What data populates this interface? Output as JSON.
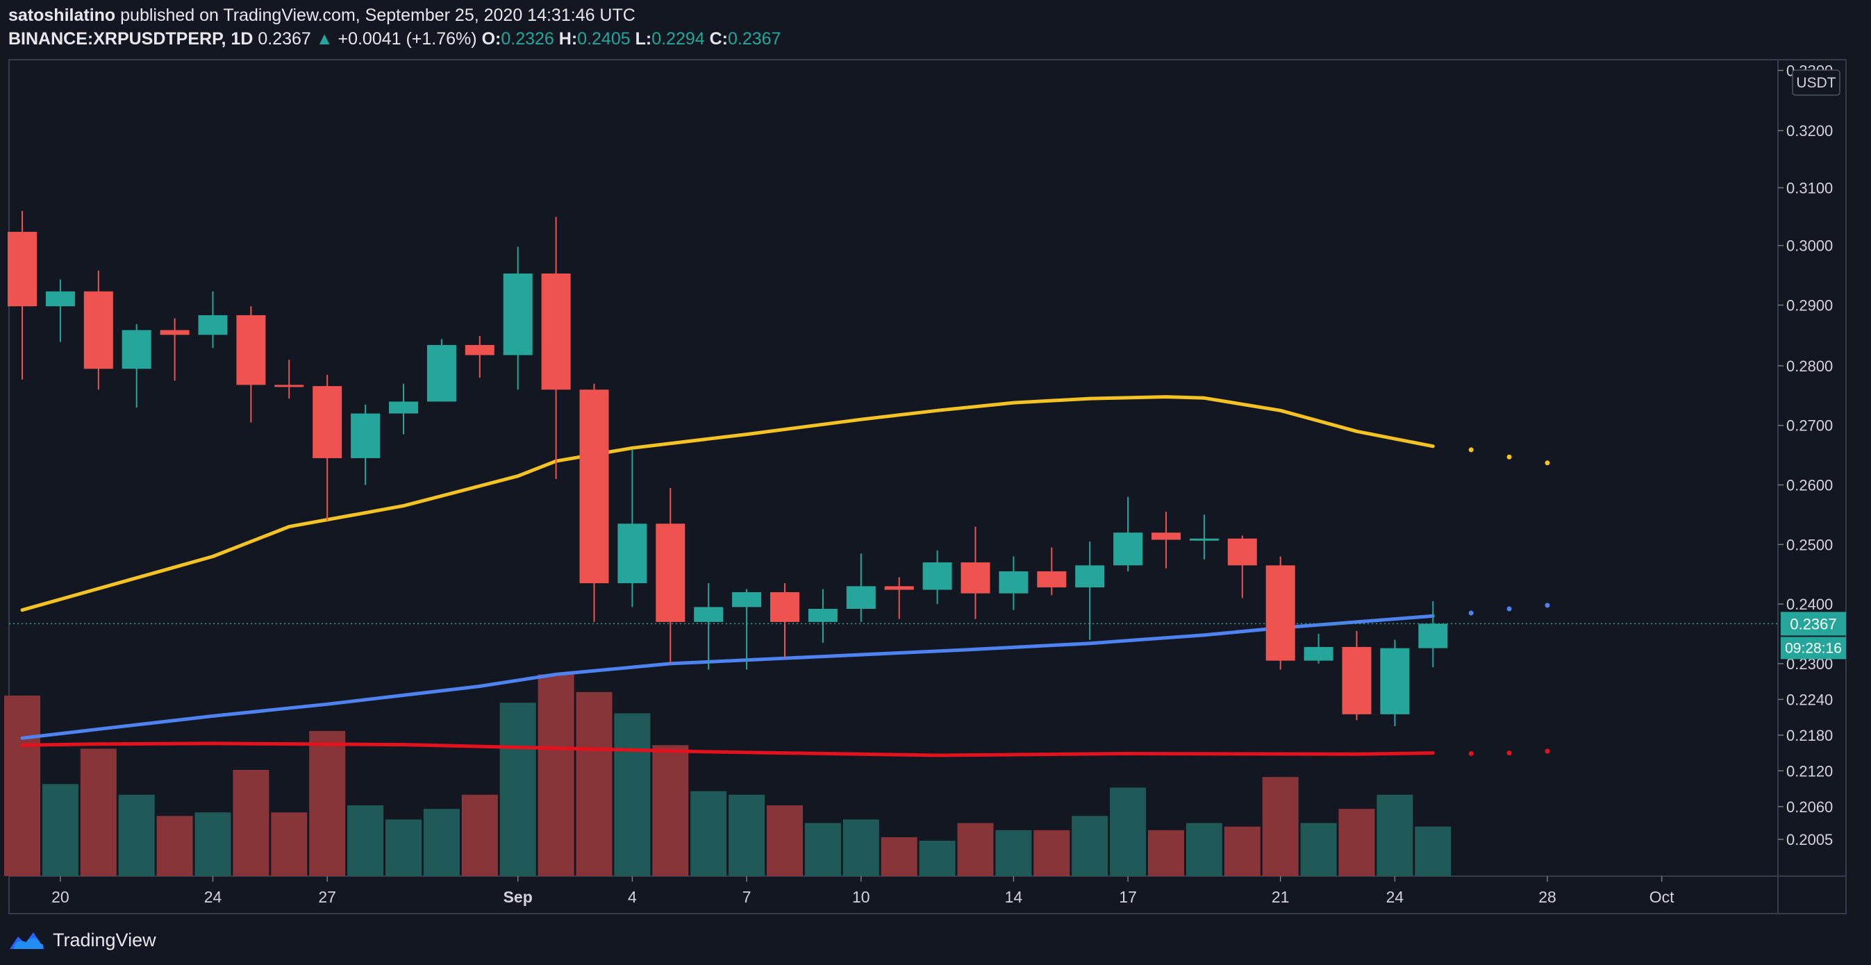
{
  "header": {
    "publisher": "satoshilatino",
    "published_text": "published on TradingView.com, September 25, 2020 14:31:46 UTC",
    "symbol": "BINANCE:XRPUSDTPERP, 1D",
    "last": "0.2367",
    "change_arrow": "▲",
    "change": "+0.0041 (+1.76%)",
    "o_label": "O:",
    "o_value": "0.2326",
    "h_label": "H:",
    "h_value": "0.2405",
    "l_label": "L:",
    "l_value": "0.2294",
    "c_label": "C:",
    "c_value": "0.2367"
  },
  "footer": {
    "brand": "TradingView",
    "icon": "tradingview-logo-icon"
  },
  "colors": {
    "background": "#131722",
    "up": "#26a69a",
    "down": "#ef5350",
    "vol_up": "#1f5a59",
    "vol_down": "#883539",
    "ma_yellow": "#f5c324",
    "ma_blue": "#4f83f2",
    "ma_red": "#e5121e",
    "grid_border": "#363c4e",
    "axis_text": "#d1d4dc"
  },
  "chart_data": {
    "type": "candlestick",
    "currency": "USDT",
    "last_price_label": "0.2367",
    "countdown_label": "09:28:16",
    "y_ticks": [
      "0.3300",
      "0.3200",
      "0.3100",
      "0.3000",
      "0.2900",
      "0.2800",
      "0.2700",
      "0.2600",
      "0.2500",
      "0.2400",
      "0.2300",
      "0.2240",
      "0.2180",
      "0.2120",
      "0.2060",
      "0.2005"
    ],
    "y_tick_values": [
      0.3296,
      0.3195,
      0.3099,
      0.3002,
      0.2902,
      0.28,
      0.27,
      0.26,
      0.25,
      0.24,
      0.23,
      0.224,
      0.218,
      0.212,
      0.206,
      0.2005
    ],
    "x_ticks": [
      {
        "label": "20",
        "date": "2020-08-20"
      },
      {
        "label": "24",
        "date": "2020-08-24"
      },
      {
        "label": "27",
        "date": "2020-08-27"
      },
      {
        "label": "Sep",
        "date": "2020-09-01"
      },
      {
        "label": "4",
        "date": "2020-09-04"
      },
      {
        "label": "7",
        "date": "2020-09-07"
      },
      {
        "label": "10",
        "date": "2020-09-10"
      },
      {
        "label": "14",
        "date": "2020-09-14"
      },
      {
        "label": "17",
        "date": "2020-09-17"
      },
      {
        "label": "21",
        "date": "2020-09-21"
      },
      {
        "label": "24",
        "date": "2020-09-24"
      },
      {
        "label": "28",
        "date": "2020-09-28"
      },
      {
        "label": "Oct",
        "date": "2020-10-01"
      }
    ],
    "candles": [
      {
        "date": "2020-08-19",
        "o": 0.3025,
        "h": 0.306,
        "l": 0.2777,
        "c": 0.29,
        "v": 51
      },
      {
        "date": "2020-08-20",
        "o": 0.29,
        "h": 0.2945,
        "l": 0.284,
        "c": 0.2925,
        "v": 26
      },
      {
        "date": "2020-08-21",
        "o": 0.2925,
        "h": 0.296,
        "l": 0.276,
        "c": 0.2795,
        "v": 36
      },
      {
        "date": "2020-08-22",
        "o": 0.2795,
        "h": 0.287,
        "l": 0.273,
        "c": 0.286,
        "v": 23
      },
      {
        "date": "2020-08-23",
        "o": 0.286,
        "h": 0.288,
        "l": 0.2775,
        "c": 0.2852,
        "v": 17
      },
      {
        "date": "2020-08-24",
        "o": 0.2852,
        "h": 0.2925,
        "l": 0.283,
        "c": 0.2885,
        "v": 18
      },
      {
        "date": "2020-08-25",
        "o": 0.2885,
        "h": 0.29,
        "l": 0.2705,
        "c": 0.2768,
        "v": 30
      },
      {
        "date": "2020-08-26",
        "o": 0.2768,
        "h": 0.281,
        "l": 0.2745,
        "c": 0.2766,
        "v": 18
      },
      {
        "date": "2020-08-27",
        "o": 0.2766,
        "h": 0.2785,
        "l": 0.254,
        "c": 0.2645,
        "v": 41
      },
      {
        "date": "2020-08-28",
        "o": 0.2645,
        "h": 0.2735,
        "l": 0.26,
        "c": 0.272,
        "v": 20
      },
      {
        "date": "2020-08-29",
        "o": 0.272,
        "h": 0.277,
        "l": 0.2685,
        "c": 0.274,
        "v": 16
      },
      {
        "date": "2020-08-30",
        "o": 0.274,
        "h": 0.2845,
        "l": 0.274,
        "c": 0.2835,
        "v": 19
      },
      {
        "date": "2020-08-31",
        "o": 0.2835,
        "h": 0.285,
        "l": 0.278,
        "c": 0.2818,
        "v": 23
      },
      {
        "date": "2020-09-01",
        "o": 0.2818,
        "h": 0.3,
        "l": 0.276,
        "c": 0.2955,
        "v": 49
      },
      {
        "date": "2020-09-02",
        "o": 0.2955,
        "h": 0.305,
        "l": 0.261,
        "c": 0.276,
        "v": 57
      },
      {
        "date": "2020-09-03",
        "o": 0.276,
        "h": 0.277,
        "l": 0.237,
        "c": 0.2435,
        "v": 52
      },
      {
        "date": "2020-09-04",
        "o": 0.2435,
        "h": 0.266,
        "l": 0.2395,
        "c": 0.2535,
        "v": 46
      },
      {
        "date": "2020-09-05",
        "o": 0.2535,
        "h": 0.2595,
        "l": 0.23,
        "c": 0.237,
        "v": 37
      },
      {
        "date": "2020-09-06",
        "o": 0.237,
        "h": 0.2435,
        "l": 0.229,
        "c": 0.2395,
        "v": 24
      },
      {
        "date": "2020-09-07",
        "o": 0.2395,
        "h": 0.2425,
        "l": 0.229,
        "c": 0.242,
        "v": 23
      },
      {
        "date": "2020-09-08",
        "o": 0.242,
        "h": 0.2435,
        "l": 0.231,
        "c": 0.237,
        "v": 20
      },
      {
        "date": "2020-09-09",
        "o": 0.237,
        "h": 0.2425,
        "l": 0.2335,
        "c": 0.2392,
        "v": 15
      },
      {
        "date": "2020-09-10",
        "o": 0.2392,
        "h": 0.2485,
        "l": 0.237,
        "c": 0.243,
        "v": 16
      },
      {
        "date": "2020-09-11",
        "o": 0.243,
        "h": 0.2445,
        "l": 0.2375,
        "c": 0.2424,
        "v": 11
      },
      {
        "date": "2020-09-12",
        "o": 0.2424,
        "h": 0.249,
        "l": 0.24,
        "c": 0.247,
        "v": 10
      },
      {
        "date": "2020-09-13",
        "o": 0.247,
        "h": 0.253,
        "l": 0.2375,
        "c": 0.2418,
        "v": 15
      },
      {
        "date": "2020-09-14",
        "o": 0.2418,
        "h": 0.248,
        "l": 0.239,
        "c": 0.2455,
        "v": 13
      },
      {
        "date": "2020-09-15",
        "o": 0.2455,
        "h": 0.2495,
        "l": 0.2415,
        "c": 0.2428,
        "v": 13
      },
      {
        "date": "2020-09-16",
        "o": 0.2428,
        "h": 0.2505,
        "l": 0.234,
        "c": 0.2465,
        "v": 17
      },
      {
        "date": "2020-09-17",
        "o": 0.2465,
        "h": 0.258,
        "l": 0.2455,
        "c": 0.252,
        "v": 25
      },
      {
        "date": "2020-09-18",
        "o": 0.252,
        "h": 0.2555,
        "l": 0.246,
        "c": 0.2508,
        "v": 13
      },
      {
        "date": "2020-09-19",
        "o": 0.2508,
        "h": 0.255,
        "l": 0.2475,
        "c": 0.251,
        "v": 15
      },
      {
        "date": "2020-09-20",
        "o": 0.251,
        "h": 0.2515,
        "l": 0.241,
        "c": 0.2465,
        "v": 14
      },
      {
        "date": "2020-09-21",
        "o": 0.2465,
        "h": 0.248,
        "l": 0.229,
        "c": 0.2305,
        "v": 28
      },
      {
        "date": "2020-09-22",
        "o": 0.2305,
        "h": 0.235,
        "l": 0.23,
        "c": 0.2328,
        "v": 15
      },
      {
        "date": "2020-09-23",
        "o": 0.2328,
        "h": 0.2355,
        "l": 0.2205,
        "c": 0.2215,
        "v": 19
      },
      {
        "date": "2020-09-24",
        "o": 0.2215,
        "h": 0.234,
        "l": 0.2195,
        "c": 0.2326,
        "v": 23
      },
      {
        "date": "2020-09-25",
        "o": 0.2326,
        "h": 0.2405,
        "l": 0.2294,
        "c": 0.2367,
        "v": 14
      }
    ],
    "series": [
      {
        "color_key": "ma_yellow",
        "values": [
          {
            "date": "2020-08-19",
            "v": 0.239
          },
          {
            "date": "2020-08-21",
            "v": 0.2426
          },
          {
            "date": "2020-08-24",
            "v": 0.248
          },
          {
            "date": "2020-08-26",
            "v": 0.253
          },
          {
            "date": "2020-08-29",
            "v": 0.2565
          },
          {
            "date": "2020-09-01",
            "v": 0.2615
          },
          {
            "date": "2020-09-02",
            "v": 0.264
          },
          {
            "date": "2020-09-04",
            "v": 0.2662
          },
          {
            "date": "2020-09-07",
            "v": 0.2685
          },
          {
            "date": "2020-09-10",
            "v": 0.271
          },
          {
            "date": "2020-09-12",
            "v": 0.2725
          },
          {
            "date": "2020-09-14",
            "v": 0.2738
          },
          {
            "date": "2020-09-16",
            "v": 0.2745
          },
          {
            "date": "2020-09-18",
            "v": 0.2748
          },
          {
            "date": "2020-09-19",
            "v": 0.2746
          },
          {
            "date": "2020-09-21",
            "v": 0.2725
          },
          {
            "date": "2020-09-23",
            "v": 0.269
          },
          {
            "date": "2020-09-25",
            "v": 0.2665
          }
        ],
        "projection": [
          {
            "date": "2020-09-26",
            "v": 0.2659
          },
          {
            "date": "2020-09-27",
            "v": 0.2647
          },
          {
            "date": "2020-09-28",
            "v": 0.2637
          }
        ]
      },
      {
        "color_key": "ma_blue",
        "values": [
          {
            "date": "2020-08-19",
            "v": 0.2175
          },
          {
            "date": "2020-08-21",
            "v": 0.219
          },
          {
            "date": "2020-08-24",
            "v": 0.2212
          },
          {
            "date": "2020-08-27",
            "v": 0.2232
          },
          {
            "date": "2020-08-31",
            "v": 0.2262
          },
          {
            "date": "2020-09-02",
            "v": 0.2282
          },
          {
            "date": "2020-09-05",
            "v": 0.23
          },
          {
            "date": "2020-09-09",
            "v": 0.2312
          },
          {
            "date": "2020-09-13",
            "v": 0.2324
          },
          {
            "date": "2020-09-16",
            "v": 0.2334
          },
          {
            "date": "2020-09-19",
            "v": 0.2348
          },
          {
            "date": "2020-09-21",
            "v": 0.236
          },
          {
            "date": "2020-09-25",
            "v": 0.238
          }
        ],
        "projection": [
          {
            "date": "2020-09-26",
            "v": 0.2385
          },
          {
            "date": "2020-09-27",
            "v": 0.2392
          },
          {
            "date": "2020-09-28",
            "v": 0.2398
          }
        ]
      },
      {
        "color_key": "ma_red",
        "values": [
          {
            "date": "2020-08-19",
            "v": 0.2163
          },
          {
            "date": "2020-08-21",
            "v": 0.2165
          },
          {
            "date": "2020-08-24",
            "v": 0.2166
          },
          {
            "date": "2020-08-29",
            "v": 0.2164
          },
          {
            "date": "2020-09-02",
            "v": 0.2158
          },
          {
            "date": "2020-09-06",
            "v": 0.2152
          },
          {
            "date": "2020-09-12",
            "v": 0.2146
          },
          {
            "date": "2020-09-17",
            "v": 0.2149
          },
          {
            "date": "2020-09-23",
            "v": 0.2148
          },
          {
            "date": "2020-09-25",
            "v": 0.215
          }
        ],
        "projection": [
          {
            "date": "2020-09-26",
            "v": 0.2149
          },
          {
            "date": "2020-09-27",
            "v": 0.215
          },
          {
            "date": "2020-09-28",
            "v": 0.2153
          }
        ]
      }
    ]
  }
}
